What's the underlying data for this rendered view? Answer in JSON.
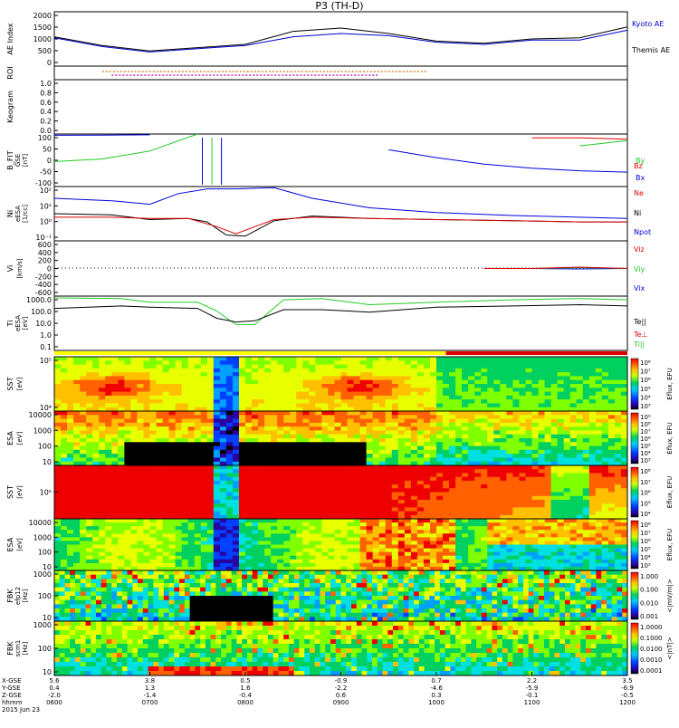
{
  "title": "P3 (TH-D)",
  "colors": {
    "kyoto": "#000000",
    "themis": "#0000cc",
    "red": "#e00000",
    "green": "#22cc22",
    "blue": "#0000dd",
    "black": "#000000",
    "status_yellow": "#ffff00",
    "status_red": "#dd0000"
  },
  "panels": {
    "ae": {
      "ylabel": "AE Index",
      "ticks": [
        "2000",
        "1500",
        "1000",
        "500",
        "0"
      ],
      "legend": [
        "Kyoto AE",
        "Themis AE"
      ]
    },
    "roi": {
      "ylabel": "ROI"
    },
    "keogram": {
      "ylabel": "Keogram",
      "ticks": [
        "1.0",
        "0.8",
        "0.6",
        "0.4",
        "0.2",
        "0.0"
      ]
    },
    "bfit": {
      "ylabel": "B_FIT",
      "units": "[nT]",
      "sublabel": "GSE",
      "ticks": [
        "100",
        "50",
        "0",
        "-50",
        "-100"
      ],
      "legend": [
        "Bz",
        "By",
        "Bx"
      ]
    },
    "ni": {
      "ylabel": "Ni",
      "units": "[1/cc]",
      "sublabel": "eESA",
      "ticks": [
        "10²",
        "10¹",
        "10⁰",
        "10⁻¹"
      ],
      "legend": [
        "Ne",
        "Ni",
        "Npot"
      ]
    },
    "vi": {
      "ylabel": "Vi",
      "units": "[km/s]",
      "ticks": [
        "600",
        "400",
        "200",
        "0",
        "-200",
        "-400",
        "-600"
      ],
      "legend": [
        "Viz",
        "Viy",
        "Vix"
      ]
    },
    "ti": {
      "ylabel": "Ti",
      "units": "[eV]",
      "sublabel": "eESA",
      "ticks": [
        "1000.0",
        "100.0",
        "10.0",
        "1.0",
        "0.1"
      ],
      "legend": [
        "Te||",
        "Te⊥",
        "Ti||",
        "Ti⊥"
      ]
    },
    "sst_e": {
      "ylabel": "SST",
      "units": "[eV]",
      "ticks": [
        "10⁵",
        "10⁴"
      ],
      "cbar": "Eflux, EFU",
      "cbticks": [
        "10⁸",
        "10⁷",
        "10⁶",
        "10⁵",
        "10⁴",
        "10³"
      ]
    },
    "esa_e": {
      "ylabel": "ESA",
      "units": "[eV]",
      "ticks": [
        "10000",
        "1000",
        "100",
        "10"
      ],
      "cbar": "Eflux, EFU",
      "cbticks": [
        "10⁹",
        "10⁸",
        "10⁷",
        "10⁶",
        "10⁵",
        "10⁴",
        "10³"
      ]
    },
    "sst_i": {
      "ylabel": "SST",
      "units": "[eV]",
      "ticks": [
        "10⁵"
      ],
      "cbar": "Eflux, EFU",
      "cbticks": [
        "10⁸",
        "10⁷",
        "10⁶",
        "10⁵",
        "10⁴"
      ]
    },
    "esa_i": {
      "ylabel": "ESA",
      "units": "[eV]",
      "ticks": [
        "10000",
        "1000",
        "100",
        "10"
      ],
      "cbar": "Eflux, EFU",
      "cbticks": [
        "10⁸",
        "10⁷",
        "10⁶",
        "10⁵",
        "10⁴",
        "10³"
      ]
    },
    "fbk_e": {
      "ylabel": "FBK",
      "units": "[Hz]",
      "sublabel": "efp12",
      "ticks": [
        "1000",
        "100",
        "10"
      ],
      "cbar": "<|mV/m|>",
      "cbticks": [
        "1.000",
        "0.100",
        "0.010",
        "0.001"
      ]
    },
    "fbk_b": {
      "ylabel": "FBK",
      "units": "[Hz]",
      "sublabel": "scm1",
      "ticks": [
        "1000",
        "100",
        "10"
      ],
      "cbar": "<|nT|>",
      "cbticks": [
        "1.0000",
        "0.1000",
        "0.0100",
        "0.0010",
        "0.0001"
      ]
    }
  },
  "xaxis": {
    "row_labels": [
      "X-GSE",
      "Y-GSE",
      "Z-GSE",
      "hhmm",
      "2015 Jun 23"
    ],
    "ticks": [
      {
        "x": "5.6",
        "y": "0.4",
        "z": "-2.0",
        "t": "0600"
      },
      {
        "x": "3.8",
        "y": "1.3",
        "z": "-1.4",
        "t": "0700"
      },
      {
        "x": "0.5",
        "y": "1.6",
        "z": "-0.4",
        "t": "0800"
      },
      {
        "x": "-0.9",
        "y": "-2.2",
        "z": "0.6",
        "t": "0900"
      },
      {
        "x": "0.7",
        "y": "-4.6",
        "z": "0.3",
        "t": "1000"
      },
      {
        "x": "2.2",
        "y": "-5.9",
        "z": "-0.1",
        "t": "1100"
      },
      {
        "x": "3.5",
        "y": "-6.9",
        "z": "-0.5",
        "t": "1200"
      }
    ]
  },
  "chart_data": [
    {
      "type": "line",
      "title": "P3 (TH-D)",
      "ylabel": "AE Index",
      "x": [
        6.0,
        6.5,
        7.0,
        7.5,
        8.0,
        8.5,
        9.0,
        9.5,
        10.0,
        10.5,
        11.0,
        11.5,
        12.0
      ],
      "ylim": [
        -300,
        2200
      ],
      "series": [
        {
          "name": "Kyoto AE",
          "values": [
            1050,
            650,
            400,
            550,
            700,
            1300,
            1450,
            1200,
            850,
            750,
            950,
            1000,
            1500
          ]
        },
        {
          "name": "Themis AE",
          "values": [
            1000,
            600,
            350,
            500,
            650,
            1050,
            1200,
            1100,
            800,
            700,
            900,
            900,
            1350
          ]
        }
      ]
    },
    {
      "type": "line",
      "ylabel": "B_FIT",
      "x": [
        6.0,
        6.5,
        7.0,
        7.5,
        8.0,
        8.5,
        9.0,
        9.5,
        10.0,
        10.5,
        11.0,
        11.5,
        12.0
      ],
      "ylim": [
        -100,
        100
      ],
      "series": [
        {
          "name": "Bx",
          "values": [
            95,
            96,
            97,
            null,
            null,
            null,
            null,
            40,
            10,
            -15,
            -30,
            -40,
            -45
          ]
        },
        {
          "name": "By",
          "values": [
            -5,
            5,
            35,
            100,
            null,
            null,
            null,
            null,
            null,
            null,
            null,
            55,
            75
          ]
        },
        {
          "name": "Bz",
          "values": [
            null,
            null,
            null,
            null,
            null,
            null,
            null,
            null,
            null,
            null,
            85,
            85,
            80
          ]
        }
      ]
    },
    {
      "type": "line",
      "ylabel": "Vi",
      "x": [
        6.0,
        7.0,
        8.0,
        9.0,
        10.0,
        10.5,
        11.0,
        11.5,
        12.0
      ],
      "ylim": [
        -600,
        600
      ],
      "series": [
        {
          "name": "Vix",
          "values": [
            null,
            null,
            null,
            null,
            null,
            0,
            0,
            -10,
            0
          ]
        },
        {
          "name": "Viy",
          "values": [
            null,
            null,
            null,
            null,
            null,
            0,
            0,
            20,
            0
          ]
        },
        {
          "name": "Viz",
          "values": [
            null,
            null,
            null,
            null,
            null,
            0,
            0,
            30,
            0
          ]
        }
      ]
    }
  ]
}
